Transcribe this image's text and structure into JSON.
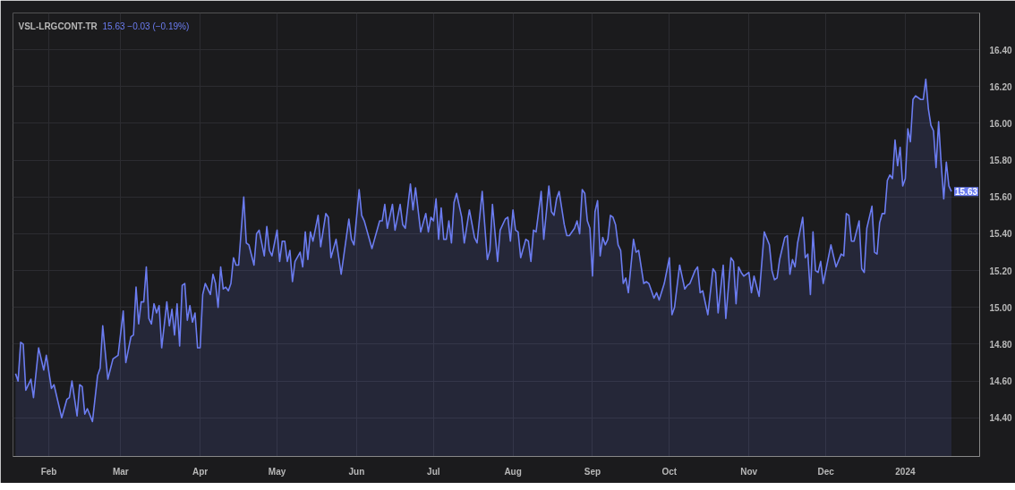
{
  "chart_data": {
    "type": "area",
    "title": "VSL-LRGCONT-TR",
    "subtitle": "15.63 −0.03 (−0.19%)",
    "annotations": [
      {
        "text": "15.63",
        "x": "2024-01-19",
        "y": 15.63
      }
    ],
    "x": [
      "2023-01-19",
      "2023-01-20",
      "2023-01-21",
      "2023-01-22",
      "2023-01-23",
      "2023-01-25",
      "2023-01-26",
      "2023-01-28",
      "2023-01-30",
      "2023-01-31",
      "2023-02-02",
      "2023-02-03",
      "2023-02-06",
      "2023-02-08",
      "2023-02-09",
      "2023-02-10",
      "2023-02-12",
      "2023-02-13",
      "2023-02-14",
      "2023-02-15",
      "2023-02-16",
      "2023-02-18",
      "2023-02-20",
      "2023-02-21",
      "2023-02-22",
      "2023-02-24",
      "2023-02-26",
      "2023-02-28",
      "2023-03-02",
      "2023-03-03",
      "2023-03-05",
      "2023-03-06",
      "2023-03-07",
      "2023-03-08",
      "2023-03-09",
      "2023-03-10",
      "2023-03-11",
      "2023-03-12",
      "2023-03-13",
      "2023-03-14",
      "2023-03-15",
      "2023-03-16",
      "2023-03-17",
      "2023-03-19",
      "2023-03-20",
      "2023-03-21",
      "2023-03-22",
      "2023-03-23",
      "2023-03-24",
      "2023-03-25",
      "2023-03-26",
      "2023-03-27",
      "2023-03-28",
      "2023-03-29",
      "2023-03-30",
      "2023-03-31",
      "2023-04-01",
      "2023-04-02",
      "2023-04-03",
      "2023-04-05",
      "2023-04-06",
      "2023-04-07",
      "2023-04-08",
      "2023-04-09",
      "2023-04-10",
      "2023-04-11",
      "2023-04-12",
      "2023-04-13",
      "2023-04-14",
      "2023-04-15",
      "2023-04-16",
      "2023-04-18",
      "2023-04-19",
      "2023-04-20",
      "2023-04-22",
      "2023-04-23",
      "2023-04-24",
      "2023-04-26",
      "2023-04-27",
      "2023-04-28",
      "2023-04-29",
      "2023-05-01",
      "2023-05-02",
      "2023-05-03",
      "2023-05-04",
      "2023-05-05",
      "2023-05-06",
      "2023-05-07",
      "2023-05-08",
      "2023-05-10",
      "2023-05-11",
      "2023-05-12",
      "2023-05-13",
      "2023-05-14",
      "2023-05-15",
      "2023-05-17",
      "2023-05-18",
      "2023-05-20",
      "2023-05-21",
      "2023-05-22",
      "2023-05-24",
      "2023-05-26",
      "2023-05-29",
      "2023-05-30",
      "2023-05-31",
      "2023-06-02",
      "2023-06-03",
      "2023-06-04",
      "2023-06-07",
      "2023-06-08",
      "2023-06-10",
      "2023-06-11",
      "2023-06-12",
      "2023-06-13",
      "2023-06-15",
      "2023-06-16",
      "2023-06-18",
      "2023-06-19",
      "2023-06-20",
      "2023-06-22",
      "2023-06-23",
      "2023-06-24",
      "2023-06-26",
      "2023-06-28",
      "2023-06-29",
      "2023-06-30",
      "2023-07-01",
      "2023-07-02",
      "2023-07-03",
      "2023-07-04",
      "2023-07-05",
      "2023-07-06",
      "2023-07-07",
      "2023-07-08",
      "2023-07-09",
      "2023-07-10",
      "2023-07-12",
      "2023-07-13",
      "2023-07-15",
      "2023-07-17",
      "2023-07-18",
      "2023-07-20",
      "2023-07-22",
      "2023-07-23",
      "2023-07-24",
      "2023-07-26",
      "2023-07-27",
      "2023-07-29",
      "2023-07-30",
      "2023-07-31",
      "2023-08-01",
      "2023-08-02",
      "2023-08-03",
      "2023-08-04",
      "2023-08-06",
      "2023-08-07",
      "2023-08-08",
      "2023-08-09",
      "2023-08-10",
      "2023-08-12",
      "2023-08-13",
      "2023-08-15",
      "2023-08-16",
      "2023-08-17",
      "2023-08-18",
      "2023-08-19",
      "2023-08-21",
      "2023-08-22",
      "2023-08-23",
      "2023-08-25",
      "2023-08-26",
      "2023-08-27",
      "2023-08-28",
      "2023-08-29",
      "2023-08-30",
      "2023-08-31",
      "2023-09-01",
      "2023-09-02",
      "2023-09-03",
      "2023-09-04",
      "2023-09-05",
      "2023-09-06",
      "2023-09-07",
      "2023-09-08",
      "2023-09-09",
      "2023-09-10",
      "2023-09-11",
      "2023-09-12",
      "2023-09-13",
      "2023-09-14",
      "2023-09-15",
      "2023-09-17",
      "2023-09-18",
      "2023-09-19",
      "2023-09-21",
      "2023-09-22",
      "2023-09-23",
      "2023-09-25",
      "2023-09-26",
      "2023-09-27",
      "2023-09-29",
      "2023-10-01",
      "2023-10-02",
      "2023-10-03",
      "2023-10-05",
      "2023-10-07",
      "2023-10-08",
      "2023-10-09",
      "2023-10-11",
      "2023-10-12",
      "2023-10-13",
      "2023-10-14",
      "2023-10-16",
      "2023-10-18",
      "2023-10-19",
      "2023-10-20",
      "2023-10-22",
      "2023-10-23",
      "2023-10-25",
      "2023-10-26",
      "2023-10-27",
      "2023-10-28",
      "2023-10-29",
      "2023-10-30",
      "2023-11-01",
      "2023-11-02",
      "2023-11-03",
      "2023-11-05",
      "2023-11-07",
      "2023-11-09",
      "2023-11-10",
      "2023-11-11",
      "2023-11-12",
      "2023-11-13",
      "2023-11-15",
      "2023-11-16",
      "2023-11-17",
      "2023-11-18",
      "2023-11-19",
      "2023-11-20",
      "2023-11-22",
      "2023-11-23",
      "2023-11-24",
      "2023-11-25",
      "2023-11-26",
      "2023-11-27",
      "2023-11-28",
      "2023-11-29",
      "2023-11-30",
      "2023-12-02",
      "2023-12-03",
      "2023-12-05",
      "2023-12-07",
      "2023-12-08",
      "2023-12-09",
      "2023-12-10",
      "2023-12-11",
      "2023-12-12",
      "2023-12-14",
      "2023-12-15",
      "2023-12-16",
      "2023-12-17",
      "2023-12-19",
      "2023-12-20",
      "2023-12-21",
      "2023-12-22",
      "2023-12-23",
      "2023-12-24",
      "2023-12-25",
      "2023-12-26",
      "2023-12-27",
      "2023-12-28",
      "2023-12-29",
      "2023-12-30",
      "2023-12-31",
      "2024-01-01",
      "2024-01-02",
      "2024-01-03",
      "2024-01-04",
      "2024-01-05",
      "2024-01-07",
      "2024-01-08",
      "2024-01-09",
      "2024-01-10",
      "2024-01-11",
      "2024-01-12",
      "2024-01-13",
      "2024-01-14",
      "2024-01-15",
      "2024-01-16",
      "2024-01-17",
      "2024-01-18",
      "2024-01-19"
    ],
    "series": [
      {
        "color": "#6b7cf0",
        "values": [
          14.64,
          14.6,
          14.81,
          14.8,
          14.55,
          14.61,
          14.51,
          14.78,
          14.66,
          14.74,
          14.56,
          14.58,
          14.4,
          14.5,
          14.51,
          14.6,
          14.41,
          14.58,
          14.57,
          14.42,
          14.45,
          14.38,
          14.63,
          14.67,
          14.9,
          14.61,
          14.72,
          14.74,
          14.98,
          14.7,
          14.84,
          14.85,
          15.11,
          14.91,
          15.03,
          15.03,
          15.22,
          14.94,
          14.91,
          15.02,
          14.97,
          15.01,
          14.78,
          15.03,
          14.9,
          14.99,
          14.85,
          15.02,
          14.79,
          15.12,
          15.13,
          14.93,
          15.01,
          14.92,
          14.97,
          14.78,
          14.78,
          15.07,
          15.13,
          15.07,
          15.18,
          15.13,
          15.0,
          15.22,
          15.1,
          15.11,
          15.09,
          15.13,
          15.27,
          15.23,
          15.23,
          15.6,
          15.35,
          15.34,
          15.23,
          15.4,
          15.42,
          15.28,
          15.44,
          15.31,
          15.28,
          15.42,
          15.25,
          15.36,
          15.36,
          15.25,
          15.31,
          15.14,
          15.25,
          15.3,
          15.22,
          15.41,
          15.26,
          15.41,
          15.36,
          15.5,
          15.33,
          15.51,
          15.49,
          15.27,
          15.37,
          15.18,
          15.48,
          15.37,
          15.34,
          15.64,
          15.5,
          15.47,
          15.32,
          15.37,
          15.47,
          15.47,
          15.56,
          15.43,
          15.56,
          15.42,
          15.56,
          15.45,
          15.43,
          15.67,
          15.53,
          15.65,
          15.41,
          15.51,
          15.41,
          15.49,
          15.47,
          15.59,
          15.37,
          15.54,
          15.37,
          15.37,
          15.47,
          15.35,
          15.57,
          15.62,
          15.49,
          15.35,
          15.53,
          15.38,
          15.35,
          15.63,
          15.26,
          15.31,
          15.56,
          15.25,
          15.42,
          15.48,
          15.49,
          15.36,
          15.53,
          15.42,
          15.41,
          15.27,
          15.37,
          15.36,
          15.25,
          15.42,
          15.41,
          15.63,
          15.37,
          15.66,
          15.52,
          15.5,
          15.59,
          15.63,
          15.45,
          15.39,
          15.39,
          15.43,
          15.47,
          15.4,
          15.64,
          15.62,
          15.47,
          15.43,
          15.17,
          15.52,
          15.58,
          15.28,
          15.38,
          15.34,
          15.37,
          15.5,
          15.49,
          15.45,
          15.34,
          15.31,
          15.13,
          15.16,
          15.08,
          15.37,
          15.3,
          15.31,
          15.13,
          15.14,
          15.13,
          15.05,
          15.08,
          15.04,
          15.13,
          15.27,
          14.96,
          15.0,
          15.23,
          15.1,
          15.12,
          15.13,
          15.2,
          15.22,
          15.08,
          15.09,
          14.96,
          15.21,
          15.19,
          14.97,
          15.23,
          14.94,
          15.27,
          15.25,
          15.02,
          15.22,
          15.19,
          15.17,
          15.19,
          15.08,
          15.17,
          15.06,
          15.41,
          15.34,
          15.2,
          15.15,
          15.16,
          15.26,
          15.38,
          15.39,
          15.18,
          15.26,
          15.22,
          15.35,
          15.49,
          15.27,
          15.29,
          15.07,
          15.41,
          15.2,
          15.19,
          15.25,
          15.13,
          15.27,
          15.34,
          15.22,
          15.29,
          15.28,
          15.51,
          15.5,
          15.36,
          15.36,
          15.47,
          15.21,
          15.19,
          15.43,
          15.55,
          15.3,
          15.29,
          15.46,
          15.51,
          15.51,
          15.69,
          15.72,
          15.7,
          15.91,
          15.77,
          15.87,
          15.66,
          15.7,
          15.97,
          15.9,
          16.13,
          16.15,
          16.13,
          16.13,
          16.24,
          16.08,
          15.99,
          15.96,
          15.76,
          16.01,
          15.78,
          15.59,
          15.79,
          15.66,
          15.63
        ]
      }
    ],
    "xlim": [
      "2023-01-18",
      "2024-01-30"
    ],
    "xticks": [
      {
        "value": "2023-02-01",
        "label": "Feb"
      },
      {
        "value": "2023-03-01",
        "label": "Mar"
      },
      {
        "value": "2023-04-01",
        "label": "Apr"
      },
      {
        "value": "2023-05-01",
        "label": "May"
      },
      {
        "value": "2023-06-01",
        "label": "Jun"
      },
      {
        "value": "2023-07-01",
        "label": "Jul"
      },
      {
        "value": "2023-08-01",
        "label": "Aug"
      },
      {
        "value": "2023-09-01",
        "label": "Sep"
      },
      {
        "value": "2023-10-01",
        "label": "Oct"
      },
      {
        "value": "2023-11-01",
        "label": "Nov"
      },
      {
        "value": "2023-12-01",
        "label": "Dec"
      },
      {
        "value": "2024-01-01",
        "label": "2024"
      }
    ],
    "ylim": [
      14.19,
      16.6
    ],
    "yticks": [
      {
        "value": 14.4,
        "label": "14.40"
      },
      {
        "value": 14.6,
        "label": "14.60"
      },
      {
        "value": 14.8,
        "label": "14.80"
      },
      {
        "value": 15.0,
        "label": "15.00"
      },
      {
        "value": 15.2,
        "label": "15.20"
      },
      {
        "value": 15.4,
        "label": "15.40"
      },
      {
        "value": 15.6,
        "label": "15.60"
      },
      {
        "value": 15.8,
        "label": "15.80"
      },
      {
        "value": 16.0,
        "label": "16.00"
      },
      {
        "value": 16.2,
        "label": "16.20"
      },
      {
        "value": 16.4,
        "label": "16.40"
      }
    ],
    "grid": true
  }
}
